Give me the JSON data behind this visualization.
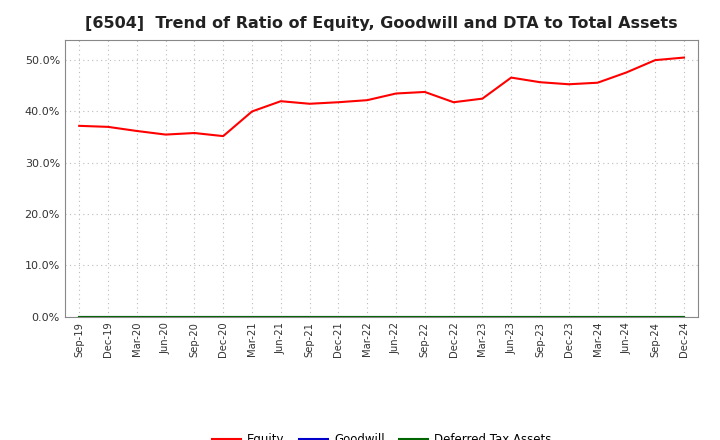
{
  "title": "[6504]  Trend of Ratio of Equity, Goodwill and DTA to Total Assets",
  "x_labels": [
    "Sep-19",
    "Dec-19",
    "Mar-20",
    "Jun-20",
    "Sep-20",
    "Dec-20",
    "Mar-21",
    "Jun-21",
    "Sep-21",
    "Dec-21",
    "Mar-22",
    "Jun-22",
    "Sep-22",
    "Dec-22",
    "Mar-23",
    "Jun-23",
    "Sep-23",
    "Dec-23",
    "Mar-24",
    "Jun-24",
    "Sep-24",
    "Dec-24"
  ],
  "equity": [
    0.372,
    0.37,
    0.362,
    0.355,
    0.358,
    0.352,
    0.4,
    0.42,
    0.415,
    0.418,
    0.422,
    0.435,
    0.438,
    0.418,
    0.425,
    0.466,
    0.457,
    0.453,
    0.456,
    0.476,
    0.5,
    0.505
  ],
  "goodwill": [
    0.0,
    0.0,
    0.0,
    0.0,
    0.0,
    0.0,
    0.0,
    0.0,
    0.0,
    0.0,
    0.0,
    0.0,
    0.0,
    0.0,
    0.0,
    0.0,
    0.0,
    0.0,
    0.0,
    0.0,
    0.0,
    0.0
  ],
  "dta": [
    0.0,
    0.0,
    0.0,
    0.0,
    0.0,
    0.0,
    0.0,
    0.0,
    0.0,
    0.0,
    0.0,
    0.0,
    0.0,
    0.0,
    0.0,
    0.0,
    0.0,
    0.0,
    0.0,
    0.0,
    0.0,
    0.0
  ],
  "equity_color": "#FF0000",
  "goodwill_color": "#0000CC",
  "dta_color": "#006600",
  "ylim": [
    0.0,
    0.54
  ],
  "yticks": [
    0.0,
    0.1,
    0.2,
    0.3,
    0.4,
    0.5
  ],
  "background_color": "#FFFFFF",
  "plot_bg_color": "#FFFFFF",
  "grid_color": "#BBBBBB",
  "title_fontsize": 11.5,
  "legend_labels": [
    "Equity",
    "Goodwill",
    "Deferred Tax Assets"
  ]
}
